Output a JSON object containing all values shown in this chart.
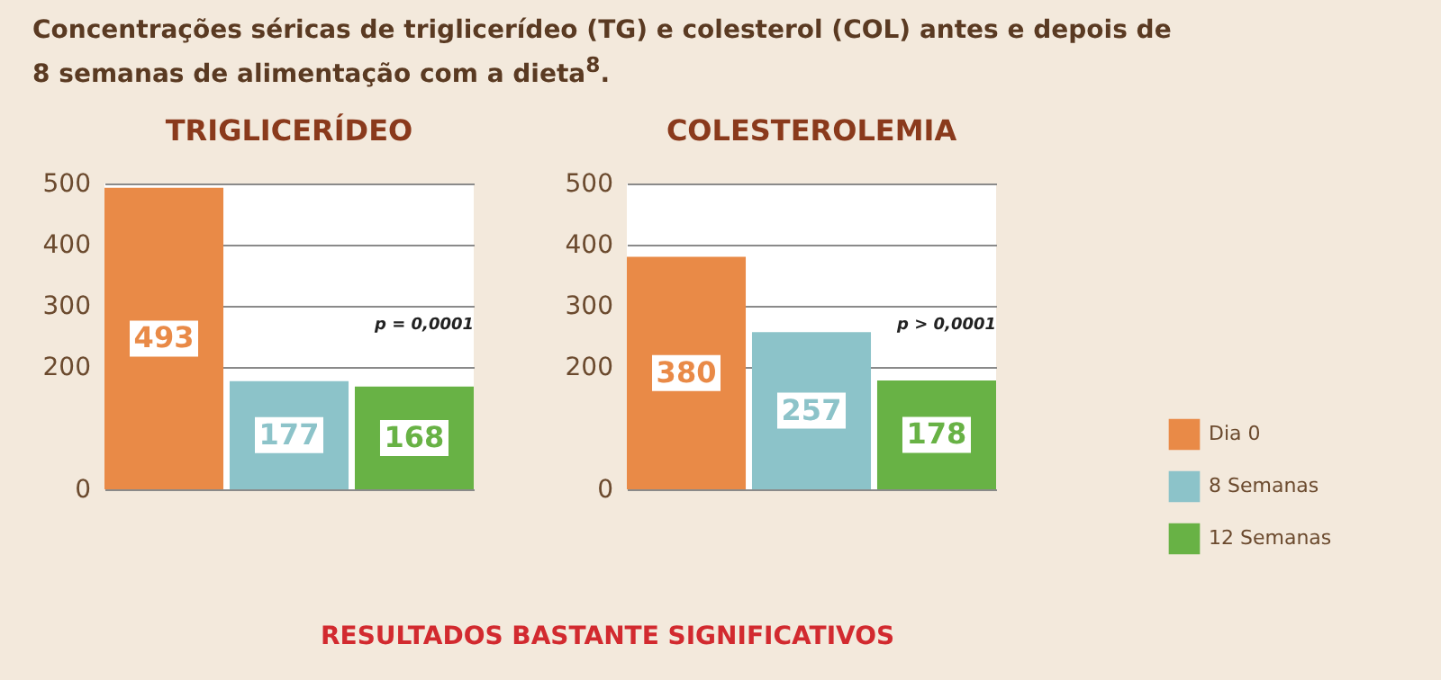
{
  "chart_data": [
    {
      "type": "bar",
      "title": "TRIGLICERÍDEO",
      "categories": [
        null
      ],
      "series": [
        {
          "color": "#e98a47",
          "values": [
            493
          ]
        },
        {
          "color": "#8cc3c9",
          "values": [
            177
          ]
        },
        {
          "color": "#68b245",
          "values": [
            168
          ]
        }
      ],
      "ylim": [
        0,
        500
      ],
      "yticks": [
        0,
        200,
        300,
        400,
        500
      ],
      "grid": "y",
      "data_labels": true,
      "annotations": [
        "Concentrações séricas de triglicerídeo (TG) e colesterol (COL) antes e depois de 8 semanas de alimentação com a dieta$^{8}$.",
        "p = 0,0001"
      ]
    },
    {
      "type": "bar",
      "title": "COLESTEROLEMIA",
      "categories": [
        null
      ],
      "series": [
        {
          "name": "Dia 0",
          "color": "#e98a47",
          "values": [
            380
          ]
        },
        {
          "name": "8 Semanas",
          "color": "#8cc3c9",
          "values": [
            257
          ]
        },
        {
          "name": "12 Semanas",
          "color": "#68b245",
          "values": [
            178
          ]
        }
      ],
      "ylim": [
        0,
        500
      ],
      "yticks": [
        0,
        200,
        300,
        400,
        500
      ],
      "grid": "y",
      "data_labels": true,
      "legend": "bottom right",
      "annotations": [
        "p > 0,0001",
        "RESULTADOS BASTANTE SIGNIFICATIVOS"
      ]
    }
  ]
}
